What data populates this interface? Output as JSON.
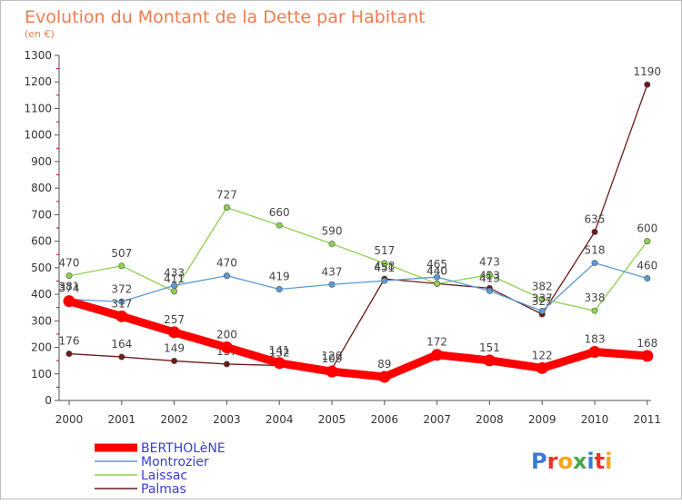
{
  "title": "Evolution du Montant de la Dette par Habitant",
  "subtitle": "(en €)",
  "brand": "Proxiti",
  "chart_data": {
    "type": "line",
    "title": "Evolution du Montant de la Dette par Habitant",
    "subtitle": "(en €)",
    "categories": [
      "2000",
      "2001",
      "2002",
      "2003",
      "2004",
      "2005",
      "2006",
      "2007",
      "2008",
      "2009",
      "2010",
      "2011"
    ],
    "ylim": [
      0,
      1300
    ],
    "yticks": [
      0,
      100,
      200,
      300,
      400,
      500,
      600,
      700,
      800,
      900,
      1000,
      1100,
      1200,
      1300
    ],
    "grid": false,
    "legend_position": "bottom-left",
    "series": [
      {
        "name": "BERTHOLèNE",
        "color": "#ff0000",
        "values": [
          374,
          317,
          257,
          200,
          141,
          109,
          89,
          172,
          151,
          122,
          183,
          168
        ],
        "labels": [
          "374",
          "317",
          "257",
          "200",
          "141",
          "109",
          "89",
          "172",
          "151",
          "122",
          "183",
          "168"
        ]
      },
      {
        "name": "Montrozier",
        "color": "#5b9bd5",
        "values": [
          381,
          372,
          433,
          470,
          419,
          437,
          451,
          465,
          413,
          337,
          518,
          460
        ],
        "labels": [
          "381",
          "372",
          "433",
          "470",
          "419",
          "437",
          "451",
          "465",
          "413",
          "337",
          "518",
          "460"
        ]
      },
      {
        "name": "Laissac",
        "color": "#8fd14f",
        "values": [
          470,
          507,
          411,
          727,
          660,
          590,
          517,
          440,
          473,
          382,
          338,
          600
        ],
        "labels": [
          "470",
          "507",
          "411",
          "727",
          "660",
          "590",
          "517",
          "440",
          "473",
          "382",
          "338",
          "600"
        ]
      },
      {
        "name": "Palmas",
        "color": "#6b1a1a",
        "values": [
          176,
          164,
          149,
          137,
          132,
          120,
          458,
          440,
          423,
          325,
          635,
          1190
        ],
        "labels": [
          "176",
          "164",
          "149",
          "137",
          "132",
          "120",
          "458",
          "440",
          "423",
          "325",
          "635",
          "1190"
        ]
      }
    ]
  }
}
